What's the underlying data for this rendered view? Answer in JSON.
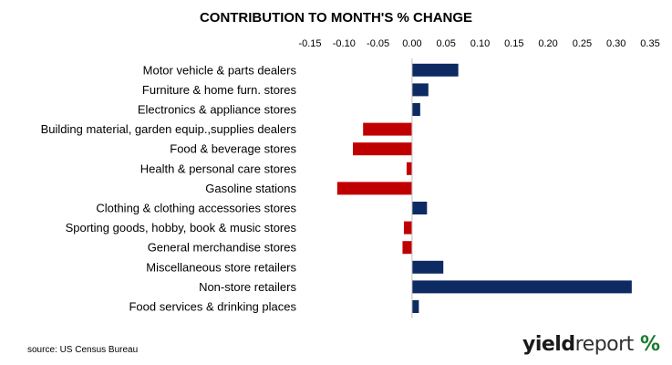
{
  "chart_data": {
    "type": "bar",
    "orientation": "horizontal",
    "title": "CONTRIBUTION TO MONTH'S % CHANGE",
    "categories": [
      "Motor vehicle & parts dealers",
      "Furniture & home furn. stores",
      "Electronics & appliance stores",
      "Building material, garden equip.,supplies dealers",
      "Food & beverage stores",
      "Health & personal care stores",
      "Gasoline stations",
      "Clothing & clothing accessories stores",
      "Sporting goods, hobby, book & music stores",
      "General merchandise stores",
      "Miscellaneous store retailers",
      "Non-store retailers",
      "Food services & drinking places"
    ],
    "values": [
      0.068,
      0.024,
      0.012,
      -0.072,
      -0.087,
      -0.008,
      -0.11,
      0.022,
      -0.012,
      -0.014,
      0.046,
      0.323,
      0.01
    ],
    "xlim": [
      -0.15,
      0.35
    ],
    "xticks": [
      "-0.15",
      "-0.10",
      "-0.05",
      "0.00",
      "0.05",
      "0.10",
      "0.15",
      "0.20",
      "0.25",
      "0.30",
      "0.35"
    ],
    "axis_position": "top",
    "grid": false,
    "colors": {
      "positive": "#0e2a63",
      "negative": "#c00000"
    }
  },
  "source": "source: US Census Bureau",
  "logo": {
    "part1": "yield",
    "part2": "report",
    "symbol": "%"
  }
}
